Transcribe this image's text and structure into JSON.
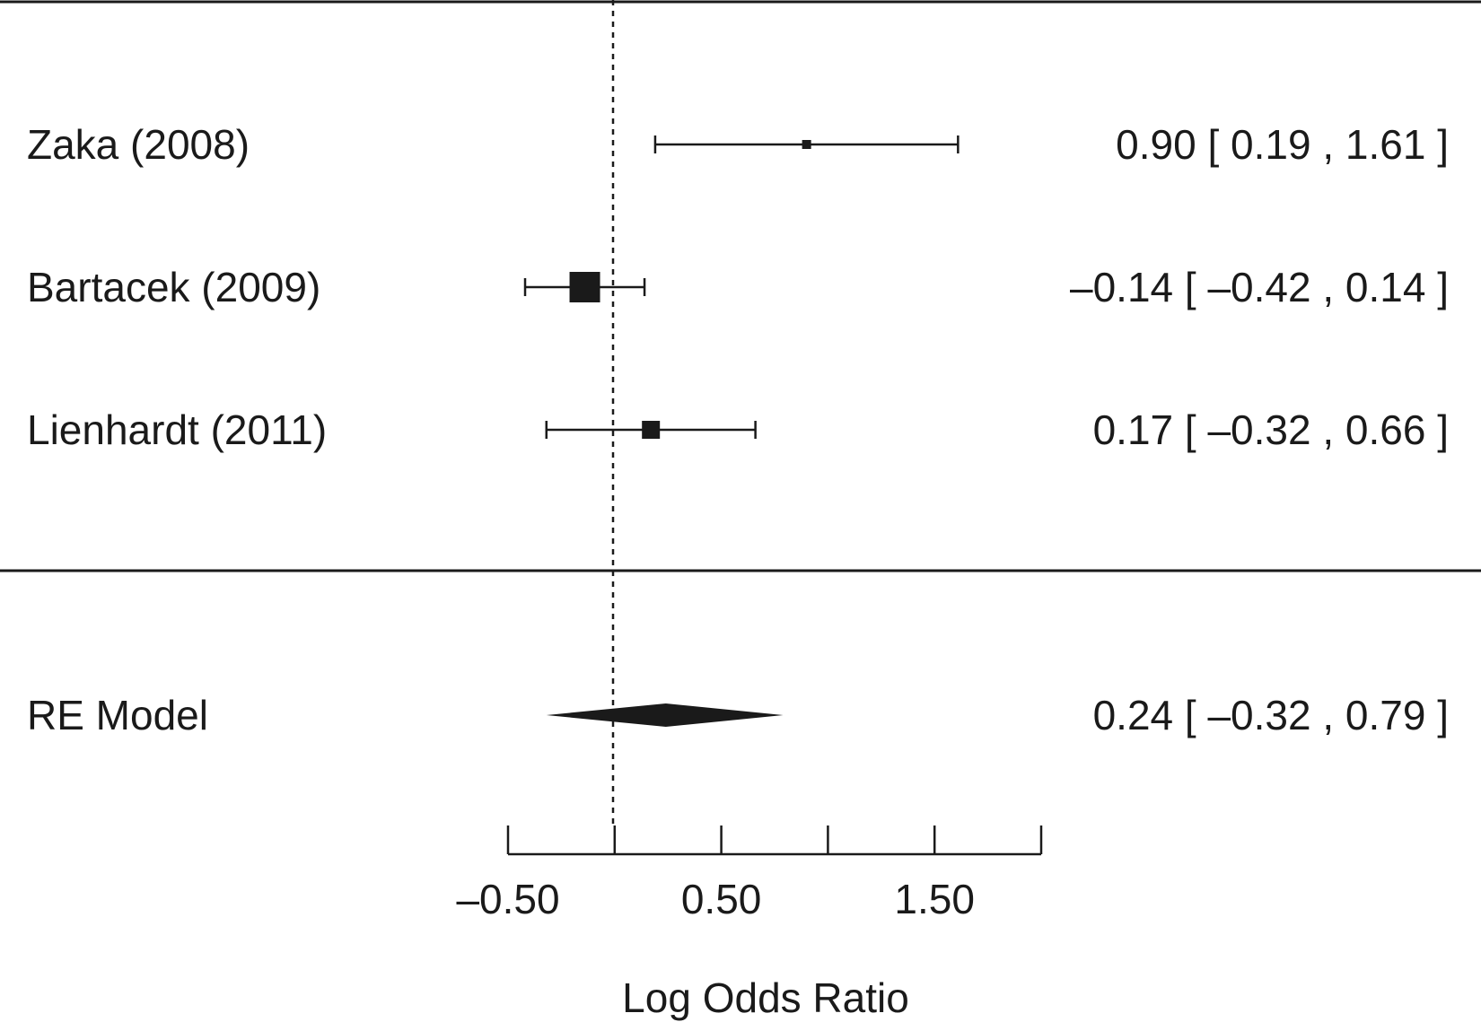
{
  "chart_data": {
    "type": "forest",
    "xlabel": "Log Odds Ratio",
    "xlim": [
      -0.5,
      2.0
    ],
    "xticks": [
      -0.5,
      0,
      0.5,
      1.0,
      1.5,
      2.0
    ],
    "xtick_labels": [
      "–0.50",
      "",
      "0.50",
      "",
      "1.50",
      ""
    ],
    "reference_line": 0,
    "studies": [
      {
        "label": "Zaka (2008)",
        "estimate": 0.9,
        "ci_low": 0.19,
        "ci_high": 1.61,
        "weight": 1,
        "text": "0.90 [  0.19 , 1.61 ]"
      },
      {
        "label": "Bartacek (2009)",
        "estimate": -0.14,
        "ci_low": -0.42,
        "ci_high": 0.14,
        "weight": 3.4,
        "text": "–0.14 [ –0.42 , 0.14 ]"
      },
      {
        "label": "Lienhardt (2011)",
        "estimate": 0.17,
        "ci_low": -0.32,
        "ci_high": 0.66,
        "weight": 2,
        "text": "0.17 [ –0.32 , 0.66 ]"
      }
    ],
    "summary": {
      "label": "RE Model",
      "estimate": 0.24,
      "ci_low": -0.32,
      "ci_high": 0.79,
      "text": "0.24 [ –0.32 , 0.79 ]"
    }
  }
}
